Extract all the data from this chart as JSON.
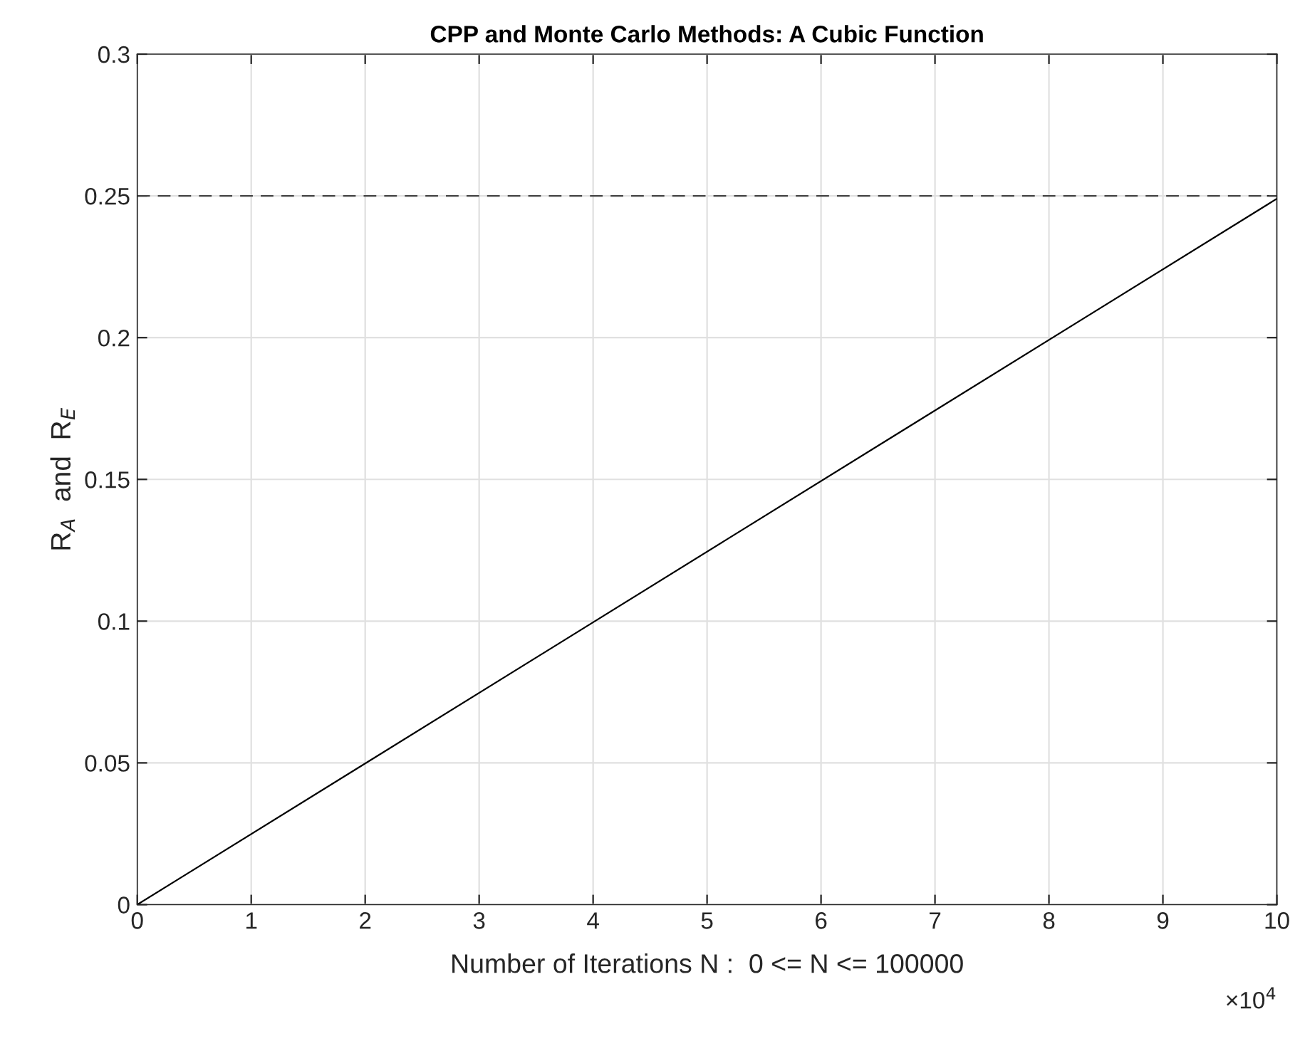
{
  "chart_data": {
    "type": "line",
    "title": "CPP and Monte Carlo Methods: A Cubic Function",
    "xlabel": "Number of Iterations N :  0 <= N <= 100000",
    "ylabel": "R$_{A}$  and  R$_{E}$",
    "series": [
      {
        "x": [
          0,
          10
        ],
        "values": [
          0,
          0.249
        ],
        "color": "#000000"
      }
    ],
    "ref_lines": [
      {
        "axis": "y",
        "value": 0.25,
        "label": null,
        "color": "#444444",
        "line_style": "dashed"
      }
    ],
    "xlim": [
      0,
      10
    ],
    "xticks": [
      0,
      1,
      2,
      3,
      4,
      5,
      6,
      7,
      8,
      9,
      10
    ],
    "ylim": [
      0,
      0.3
    ],
    "yticks": [
      0,
      0.05,
      0.1,
      0.15,
      0.2,
      0.25,
      0.3
    ],
    "annotations": [
      "×10$^{4}$"
    ],
    "grid": true,
    "marker": "none",
    "line_style": "solid"
  }
}
